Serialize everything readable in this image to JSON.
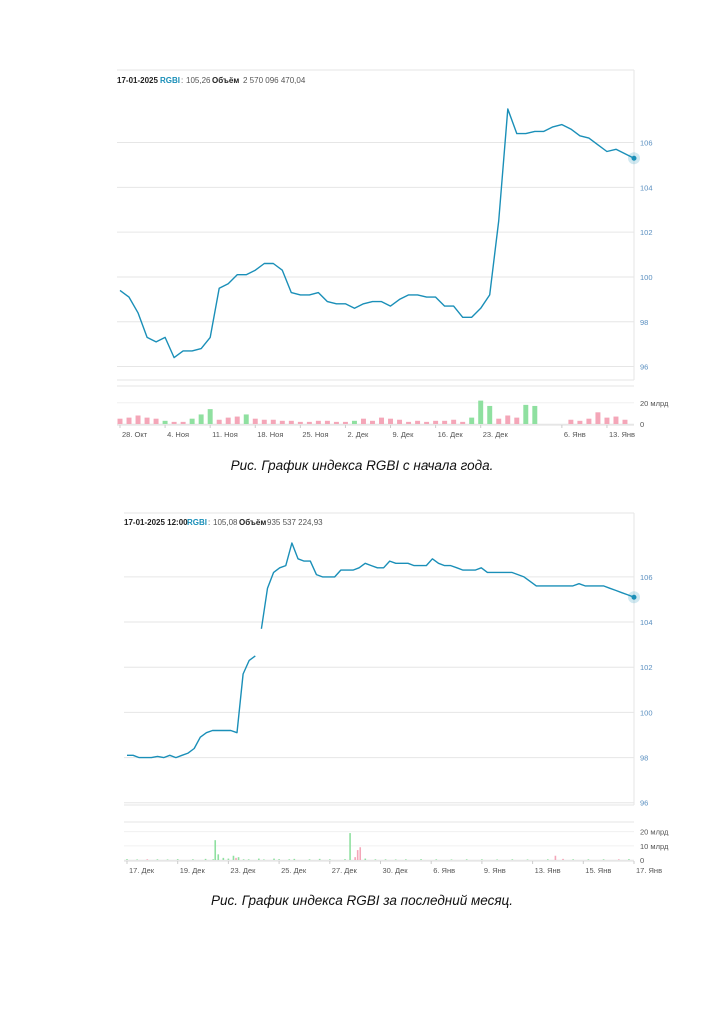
{
  "chart_data": [
    {
      "type": "line",
      "header": {
        "date": "17-01-2025",
        "ticker": "RGBI",
        "value": "105,26",
        "volume_label": "Объём",
        "volume_value": "2 570 096 470,04"
      },
      "y_ticks": [
        "106",
        "104",
        "102",
        "100",
        "98",
        "96"
      ],
      "y_tick_values": [
        106,
        104,
        102,
        100,
        98,
        96
      ],
      "ylim": [
        95.4,
        107.9
      ],
      "volume_ticks": [
        "20 млрд",
        "0"
      ],
      "volume_tick_values": [
        20,
        0
      ],
      "volume_ylim": [
        0,
        32
      ],
      "x_ticks": [
        "28. Окт",
        "4. Ноя",
        "11. Ноя",
        "18. Ноя",
        "25. Ноя",
        "2. Дек",
        "9. Дек",
        "16. Дек",
        "23. Дек",
        "6. Янв",
        "13. Янв"
      ],
      "x_tick_index": [
        0,
        5,
        10,
        15,
        20,
        25,
        30,
        35,
        40,
        49,
        54
      ],
      "series_color": "#1a8fb8",
      "x_count": 58,
      "values": [
        99.4,
        99.1,
        98.4,
        97.3,
        97.1,
        97.3,
        96.4,
        96.7,
        96.7,
        96.8,
        97.3,
        99.5,
        99.7,
        100.1,
        100.1,
        100.3,
        100.6,
        100.6,
        100.3,
        99.3,
        99.2,
        99.2,
        99.3,
        98.9,
        98.8,
        98.8,
        98.6,
        98.8,
        98.9,
        98.9,
        98.7,
        99.0,
        99.2,
        99.2,
        99.1,
        99.1,
        98.7,
        98.7,
        98.2,
        98.2,
        98.6,
        99.2,
        102.5,
        107.5,
        106.4,
        106.4,
        106.5,
        106.5,
        106.7,
        106.8,
        106.6,
        106.3,
        106.2,
        105.9,
        105.6,
        105.7,
        105.5,
        105.3
      ],
      "volumes": [
        5,
        6,
        8,
        6,
        5,
        3,
        2,
        2,
        5,
        9,
        14,
        4,
        6,
        7,
        9,
        5,
        4,
        4,
        3,
        3,
        2,
        2,
        3,
        3,
        2,
        2,
        3,
        5,
        3,
        6,
        5,
        4,
        2,
        3,
        2,
        3,
        3,
        4,
        2,
        6,
        22,
        17,
        5,
        8,
        6,
        18,
        17,
        0,
        0,
        0,
        4,
        3,
        5,
        11,
        6,
        7,
        4,
        0
      ],
      "volume_up": [
        false,
        false,
        false,
        false,
        false,
        true,
        false,
        false,
        true,
        true,
        true,
        false,
        false,
        false,
        true,
        false,
        false,
        false,
        false,
        false,
        false,
        false,
        false,
        false,
        false,
        false,
        true,
        false,
        false,
        false,
        false,
        false,
        false,
        false,
        false,
        false,
        false,
        false,
        false,
        true,
        true,
        true,
        false,
        false,
        false,
        true,
        true,
        false,
        false,
        false,
        false,
        false,
        false,
        false,
        false,
        false,
        false,
        false
      ]
    },
    {
      "type": "line",
      "header": {
        "date": "17-01-2025 12:00",
        "ticker": "RGBI",
        "value": "105,08",
        "volume_label": "Объём",
        "volume_value": "935 537 224,93"
      },
      "y_ticks": [
        "106",
        "104",
        "102",
        "100",
        "98",
        "96"
      ],
      "y_tick_values": [
        106,
        104,
        102,
        100,
        98,
        96
      ],
      "ylim": [
        95.9,
        107.5
      ],
      "volume_ticks": [
        "20 млрд",
        "10 млрд",
        "0"
      ],
      "volume_tick_values": [
        20,
        10,
        0
      ],
      "volume_ylim": [
        0,
        24
      ],
      "x_ticks": [
        "17. Дек",
        "19. Дек",
        "23. Дек",
        "25. Дек",
        "27. Дек",
        "30. Дек",
        "6. Янв",
        "9. Янв",
        "13. Янв",
        "15. Янв",
        "17. Янв"
      ],
      "x_tick_t": [
        0.0,
        0.1,
        0.2,
        0.3,
        0.4,
        0.5,
        0.6,
        0.7,
        0.8,
        0.9,
        1.0
      ],
      "series_color": "#1a8fb8",
      "x_count": 84,
      "values": [
        98.1,
        98.1,
        98.0,
        98.0,
        98.0,
        98.05,
        98.0,
        98.1,
        98.0,
        98.1,
        98.2,
        98.4,
        98.9,
        99.1,
        99.2,
        99.2,
        99.2,
        99.2,
        99.1,
        101.7,
        102.3,
        102.5,
        103.7,
        105.5,
        106.2,
        106.4,
        106.5,
        107.5,
        106.8,
        106.7,
        106.7,
        106.1,
        106.0,
        106.0,
        106.0,
        106.3,
        106.3,
        106.3,
        106.4,
        106.6,
        106.5,
        106.4,
        106.4,
        106.7,
        106.6,
        106.6,
        106.6,
        106.5,
        106.5,
        106.5,
        106.8,
        106.6,
        106.5,
        106.5,
        106.4,
        106.3,
        106.3,
        106.3,
        106.4,
        106.2,
        106.2,
        106.2,
        106.2,
        106.2,
        106.1,
        106.0,
        105.8,
        105.6,
        105.6,
        105.6,
        105.6,
        105.6,
        105.6,
        105.6,
        105.7,
        105.6,
        105.6,
        105.6,
        105.6,
        105.5,
        105.4,
        105.3,
        105.2,
        105.1
      ],
      "gaps": [
        22
      ],
      "volumes": [
        0.5,
        0,
        0.5,
        0,
        1,
        0,
        0.5,
        0,
        1,
        0,
        0,
        0.5,
        0,
        0,
        0,
        1,
        0.5,
        0,
        0,
        0,
        0,
        0,
        0,
        0,
        0,
        0,
        0,
        0,
        0,
        0,
        0,
        0,
        0,
        0,
        0,
        0,
        0,
        0,
        0,
        0,
        0,
        0,
        0,
        0,
        0,
        0,
        0,
        0,
        0,
        0,
        0,
        0,
        0,
        0,
        0,
        0,
        0,
        0,
        0,
        0,
        0,
        0,
        0,
        0,
        0,
        0,
        0,
        0,
        0,
        0,
        0,
        0,
        0,
        0,
        0,
        0,
        0,
        0,
        0,
        0,
        0,
        0,
        0,
        0
      ],
      "volume_bars": [
        {
          "t": 0.0,
          "v": 0.6,
          "up": true
        },
        {
          "t": 0.02,
          "v": 0.4,
          "up": true
        },
        {
          "t": 0.04,
          "v": 0.5,
          "up": false
        },
        {
          "t": 0.06,
          "v": 0.5,
          "up": true
        },
        {
          "t": 0.08,
          "v": 0.4,
          "up": true
        },
        {
          "t": 0.1,
          "v": 0.6,
          "up": true
        },
        {
          "t": 0.13,
          "v": 0.5,
          "up": true
        },
        {
          "t": 0.155,
          "v": 0.8,
          "up": true
        },
        {
          "t": 0.17,
          "v": 0.5,
          "up": true
        },
        {
          "t": 0.174,
          "v": 14.0,
          "up": true
        },
        {
          "t": 0.18,
          "v": 4.0,
          "up": true
        },
        {
          "t": 0.19,
          "v": 1.5,
          "up": true
        },
        {
          "t": 0.2,
          "v": 1.0,
          "up": true
        },
        {
          "t": 0.21,
          "v": 3.0,
          "up": true
        },
        {
          "t": 0.215,
          "v": 1.5,
          "up": false
        },
        {
          "t": 0.22,
          "v": 2.0,
          "up": true
        },
        {
          "t": 0.23,
          "v": 0.5,
          "up": true
        },
        {
          "t": 0.24,
          "v": 0.5,
          "up": true
        },
        {
          "t": 0.26,
          "v": 1.0,
          "up": true
        },
        {
          "t": 0.27,
          "v": 0.4,
          "up": true
        },
        {
          "t": 0.29,
          "v": 1.0,
          "up": true
        },
        {
          "t": 0.3,
          "v": 0.6,
          "up": true
        },
        {
          "t": 0.32,
          "v": 0.5,
          "up": true
        },
        {
          "t": 0.33,
          "v": 0.8,
          "up": true
        },
        {
          "t": 0.36,
          "v": 0.5,
          "up": true
        },
        {
          "t": 0.38,
          "v": 0.8,
          "up": true
        },
        {
          "t": 0.4,
          "v": 0.5,
          "up": true
        },
        {
          "t": 0.43,
          "v": 0.6,
          "up": true
        },
        {
          "t": 0.44,
          "v": 19.0,
          "up": true
        },
        {
          "t": 0.45,
          "v": 2.0,
          "up": false
        },
        {
          "t": 0.455,
          "v": 7.0,
          "up": false
        },
        {
          "t": 0.46,
          "v": 9.0,
          "up": false
        },
        {
          "t": 0.47,
          "v": 1.0,
          "up": true
        },
        {
          "t": 0.49,
          "v": 0.5,
          "up": true
        },
        {
          "t": 0.51,
          "v": 0.5,
          "up": true
        },
        {
          "t": 0.53,
          "v": 0.4,
          "up": true
        },
        {
          "t": 0.55,
          "v": 0.5,
          "up": true
        },
        {
          "t": 0.58,
          "v": 0.6,
          "up": true
        },
        {
          "t": 0.61,
          "v": 0.5,
          "up": true
        },
        {
          "t": 0.64,
          "v": 0.4,
          "up": true
        },
        {
          "t": 0.67,
          "v": 0.5,
          "up": true
        },
        {
          "t": 0.7,
          "v": 0.5,
          "up": true
        },
        {
          "t": 0.73,
          "v": 0.4,
          "up": true
        },
        {
          "t": 0.76,
          "v": 0.5,
          "up": true
        },
        {
          "t": 0.79,
          "v": 0.4,
          "up": true
        },
        {
          "t": 0.83,
          "v": 0.5,
          "up": true
        },
        {
          "t": 0.845,
          "v": 3.0,
          "up": false
        },
        {
          "t": 0.86,
          "v": 0.8,
          "up": false
        },
        {
          "t": 0.88,
          "v": 0.5,
          "up": true
        },
        {
          "t": 0.91,
          "v": 0.5,
          "up": true
        },
        {
          "t": 0.94,
          "v": 0.5,
          "up": true
        },
        {
          "t": 0.97,
          "v": 0.5,
          "up": false
        },
        {
          "t": 0.99,
          "v": 0.6,
          "up": true
        }
      ]
    }
  ],
  "captions": {
    "first": "Рис. График индекса RGBI с начала года.",
    "second": "Рис. График индекса RGBI за последний месяц."
  },
  "colors": {
    "line": "#1a8fb8",
    "grid": "#e6e6e6",
    "vol_up": "#8fe0a0",
    "vol_down": "#f4a6b8",
    "axis_text": "#5a8fc0"
  }
}
